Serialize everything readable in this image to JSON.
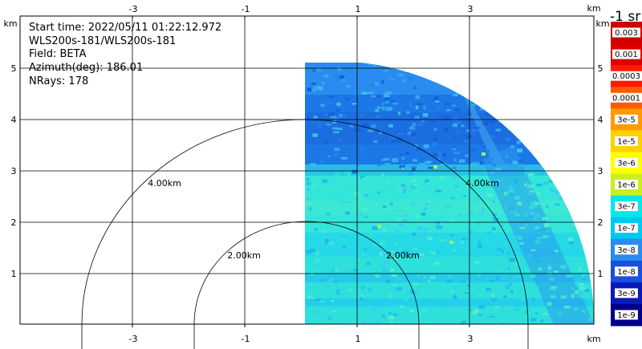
{
  "info": {
    "start_time": "Start time: 2022/05/11 01:22:12.972",
    "instrument": "WLS200s-181/WLS200s-181",
    "field": "Field: BETA",
    "azimuth": "Azimuth(deg): 186.01",
    "nrays": "NRays: 178"
  },
  "axis_unit": "km",
  "colorbar_title": "-1 sr",
  "chart_data": {
    "type": "heatmap",
    "title": "",
    "x_ticks": [
      "-3",
      "-1",
      "1",
      "3"
    ],
    "y_ticks": [
      "1",
      "2",
      "3",
      "4",
      "5"
    ],
    "xlim": [
      -5,
      6
    ],
    "ylim": [
      0,
      5.5
    ],
    "range_rings_km": [
      2,
      4
    ],
    "ring_labels": [
      "2.00km",
      "2.00km",
      "4.00km",
      "4.00km"
    ],
    "colorbar_labels": [
      "0.003",
      "0.001",
      "0.0003",
      "0.0001",
      "3e-5",
      "1e-5",
      "3e-6",
      "1e-6",
      "3e-7",
      "1e-7",
      "3e-8",
      "1e-8",
      "3e-9",
      "1e-9"
    ],
    "colorbar_colors": [
      "#cc0000",
      "#dd0000",
      "#ff1a00",
      "#ff5a00",
      "#ff9a00",
      "#ffd000",
      "#ffff00",
      "#c8f020",
      "#00e8e8",
      "#00c8f0",
      "#2a8cf0",
      "#1a50e0",
      "#0a1ab8",
      "#000088"
    ]
  },
  "colors": {
    "upper_blue": "#1e7ce6",
    "mid_blue": "#3fa0ec",
    "cyan": "#2fe0dc",
    "aqua": "#22d4e8"
  }
}
